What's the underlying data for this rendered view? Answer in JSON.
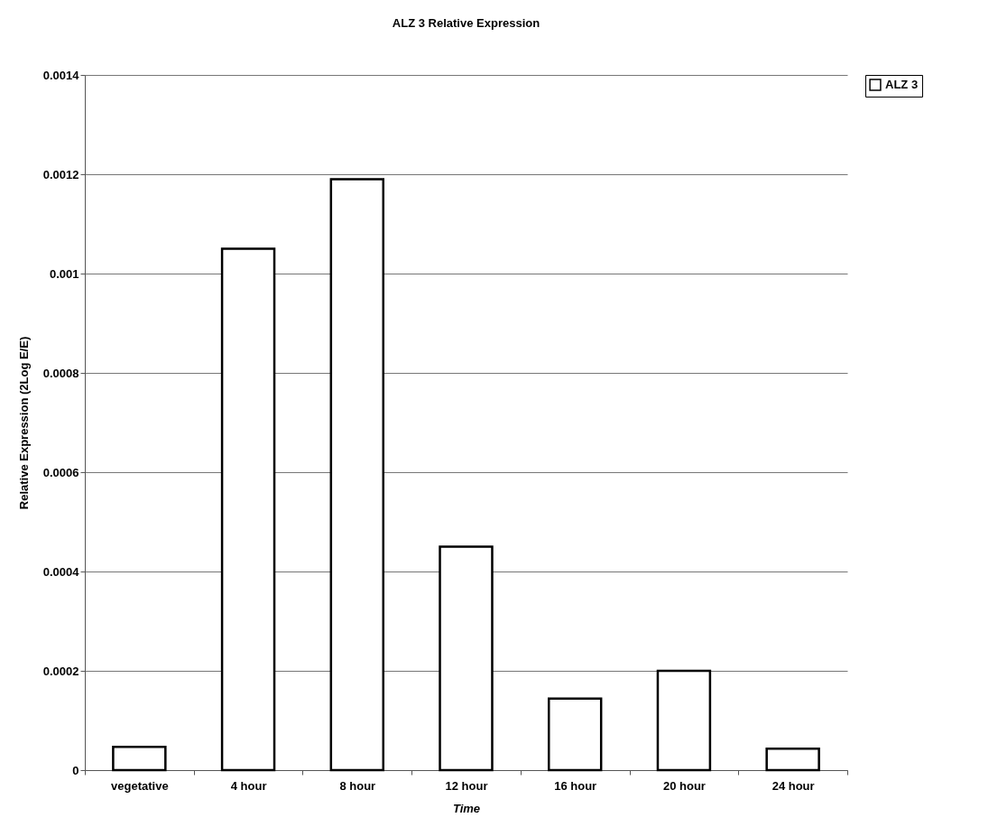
{
  "chart_data": {
    "type": "bar",
    "title": "ALZ 3 Relative Expression",
    "xlabel": "Time",
    "ylabel": "Relative Expression (2Log E/E)",
    "categories": [
      "vegetative",
      "4 hour",
      "8 hour",
      "12 hour",
      "16 hour",
      "20 hour",
      "24 hour"
    ],
    "series": [
      {
        "name": "ALZ 3",
        "color": "#ffffff",
        "values": [
          4.7e-05,
          0.00105,
          0.00119,
          0.00045,
          0.000144,
          0.0002,
          4.3e-05
        ]
      }
    ],
    "ylim": [
      0,
      0.0014
    ],
    "yticks": [
      0,
      0.0002,
      0.0004,
      0.0006,
      0.0008,
      0.001,
      0.0012,
      0.0014
    ],
    "grid": "y",
    "legend": "right"
  }
}
